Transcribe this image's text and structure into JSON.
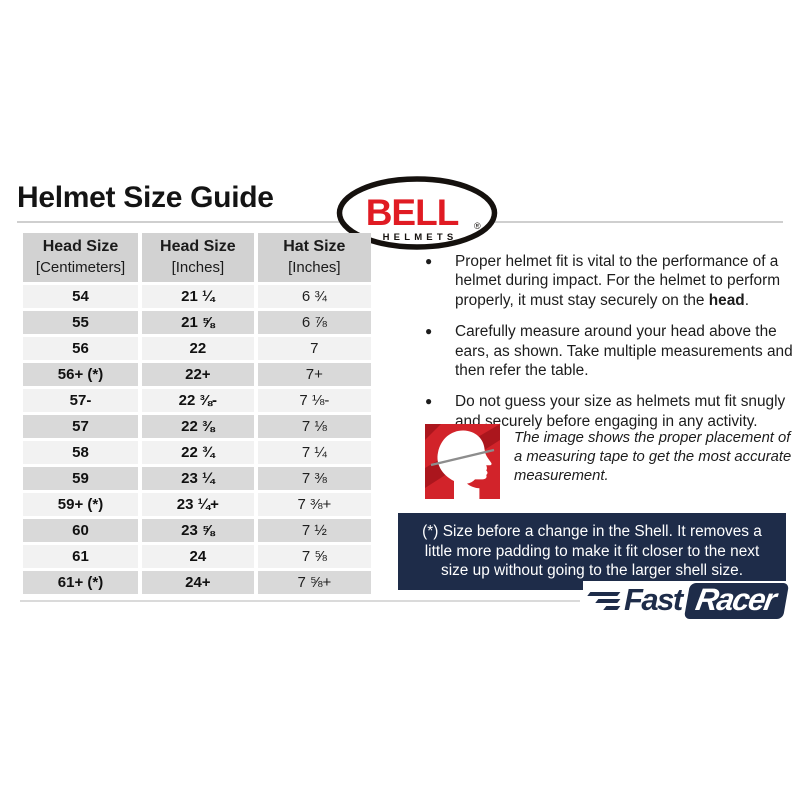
{
  "title": "Helmet Size Guide",
  "bell_logo": {
    "name": "BELL",
    "sub": "HELMETS",
    "reg": "®"
  },
  "table": {
    "headers": [
      {
        "line1": "Head Size",
        "line2": "[Centimeters]"
      },
      {
        "line1": "Head Size",
        "line2": "[Inches]"
      },
      {
        "line1": "Hat Size",
        "line2": "[Inches]"
      }
    ],
    "rows": [
      [
        "54",
        "21 ¼",
        "6 ¾"
      ],
      [
        "55",
        "21 ⅝",
        "6 ⅞"
      ],
      [
        "56",
        "22",
        "7"
      ],
      [
        "56+ (*)",
        "22+",
        "7+"
      ],
      [
        "57-",
        "22 ⅜-",
        "7 ⅛-"
      ],
      [
        "57",
        "22 ⅜",
        "7 ⅛"
      ],
      [
        "58",
        "22 ¾",
        "7 ¼"
      ],
      [
        "59",
        "23 ¼",
        "7 ⅜"
      ],
      [
        "59+ (*)",
        "23 ¼+",
        "7 ⅜+"
      ],
      [
        "60",
        "23 ⅝",
        "7 ½"
      ],
      [
        "61",
        "24",
        "7 ⅝"
      ],
      [
        "61+ (*)",
        "24+",
        "7 ⅝+"
      ]
    ]
  },
  "bullets": [
    {
      "pre": "Proper helmet fit is vital to the performance of a helmet during impact. For the helmet to perform properly, it must stay securely on the ",
      "bold": "head",
      "post": "."
    },
    {
      "pre": "Carefully measure around your head above the ears, as shown. Take multiple measurements and then refer the table.",
      "bold": "",
      "post": ""
    },
    {
      "pre": "Do not guess your size as helmets mut fit snugly and securely before engaging in any activity.",
      "bold": "",
      "post": ""
    }
  ],
  "caption": "The image shows the proper placement of a measuring tape to get the most accurate measurement.",
  "note": "(*) Size before a change in the Shell. It removes a little more padding to make it fit closer to the next size up without going to the larger shell size.",
  "footer_logo": {
    "fast": "Fast",
    "racer": "Racer"
  },
  "icons": {
    "bullet": "●",
    "head_measurement": "head-profile-with-measuring-tape"
  },
  "colors": {
    "bell_red": "#e01b23",
    "navy": "#1e2c49",
    "icon_red": "#d2232a",
    "icon_red_dark": "#ab161d",
    "header_gray": "#d2d2d2",
    "row_light": "#f2f2f2",
    "row_dark": "#d9d9d9",
    "rule_gray": "#cfcfcf"
  }
}
